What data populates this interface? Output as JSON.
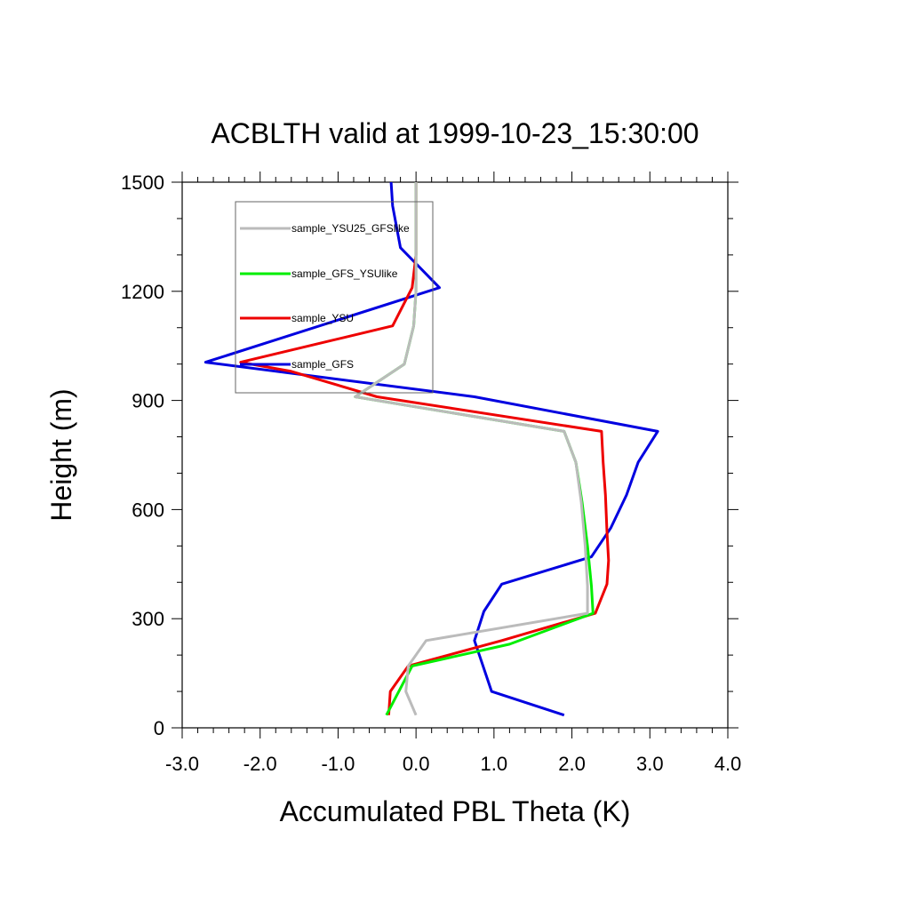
{
  "chart_data": {
    "type": "line",
    "title": "ACBLTH valid at 1999-10-23_15:30:00",
    "xlabel": "Accumulated PBL Theta (K)",
    "ylabel": "Height (m)",
    "xlim": [
      -3.0,
      4.0
    ],
    "ylim": [
      0,
      1500
    ],
    "x_ticks": [
      -3.0,
      -2.0,
      -1.0,
      0.0,
      1.0,
      2.0,
      3.0,
      4.0
    ],
    "x_tick_labels": [
      "-3.0",
      "-2.0",
      "-1.0",
      "0.0",
      "1.0",
      "2.0",
      "3.0",
      "4.0"
    ],
    "y_ticks": [
      0,
      300,
      600,
      900,
      1200,
      1500
    ],
    "y_tick_labels": [
      "0",
      "300",
      "600",
      "900",
      "1200",
      "1500"
    ],
    "grid": false,
    "legend_placement": "top-left",
    "series": [
      {
        "name": "sample_GFS",
        "color": "#0000e0",
        "points": [
          [
            1.9,
            35
          ],
          [
            0.97,
            100
          ],
          [
            0.75,
            240
          ],
          [
            0.87,
            320
          ],
          [
            1.1,
            395
          ],
          [
            2.25,
            470
          ],
          [
            2.5,
            550
          ],
          [
            2.7,
            640
          ],
          [
            2.85,
            730
          ],
          [
            3.1,
            815
          ],
          [
            0.75,
            910
          ],
          [
            -2.7,
            1005
          ],
          [
            0.3,
            1210
          ],
          [
            -0.2,
            1320
          ],
          [
            -0.3,
            1435
          ],
          [
            -0.32,
            1500
          ]
        ]
      },
      {
        "name": "sample_YSU",
        "color": "#ee0000",
        "points": [
          [
            -0.35,
            35
          ],
          [
            -0.33,
            100
          ],
          [
            -0.1,
            170
          ],
          [
            1.1,
            240
          ],
          [
            2.3,
            315
          ],
          [
            2.45,
            395
          ],
          [
            2.47,
            460
          ],
          [
            2.45,
            540
          ],
          [
            2.43,
            640
          ],
          [
            2.4,
            730
          ],
          [
            2.38,
            815
          ],
          [
            -0.5,
            910
          ],
          [
            -1.6,
            980
          ],
          [
            -2.25,
            1005
          ],
          [
            -0.3,
            1105
          ],
          [
            -0.05,
            1210
          ],
          [
            0.0,
            1300
          ],
          [
            0.0,
            1500
          ]
        ]
      },
      {
        "name": "sample_GFS_YSUlike",
        "color": "#00ee00",
        "points": [
          [
            -0.38,
            35
          ],
          [
            -0.05,
            170
          ],
          [
            1.2,
            230
          ],
          [
            2.27,
            315
          ],
          [
            2.25,
            390
          ],
          [
            2.2,
            500
          ],
          [
            2.13,
            620
          ],
          [
            2.05,
            730
          ],
          [
            1.9,
            815
          ],
          [
            -0.78,
            910
          ],
          [
            -0.15,
            1000
          ],
          [
            -0.03,
            1105
          ],
          [
            0.0,
            1200
          ],
          [
            0.0,
            1500
          ]
        ]
      },
      {
        "name": "sample_YSU25_GFSlike",
        "color": "#bbbbbb",
        "points": [
          [
            0.0,
            35
          ],
          [
            -0.13,
            100
          ],
          [
            -0.1,
            170
          ],
          [
            0.13,
            240
          ],
          [
            2.2,
            315
          ],
          [
            2.2,
            390
          ],
          [
            2.17,
            500
          ],
          [
            2.12,
            620
          ],
          [
            2.05,
            730
          ],
          [
            1.9,
            815
          ],
          [
            -0.78,
            910
          ],
          [
            -0.15,
            1000
          ],
          [
            -0.03,
            1105
          ],
          [
            0.0,
            1200
          ],
          [
            0.0,
            1500
          ]
        ]
      }
    ],
    "legend_order": [
      "sample_YSU25_GFSlike",
      "sample_GFS_YSUlike",
      "sample_YSU",
      "sample_GFS"
    ]
  }
}
